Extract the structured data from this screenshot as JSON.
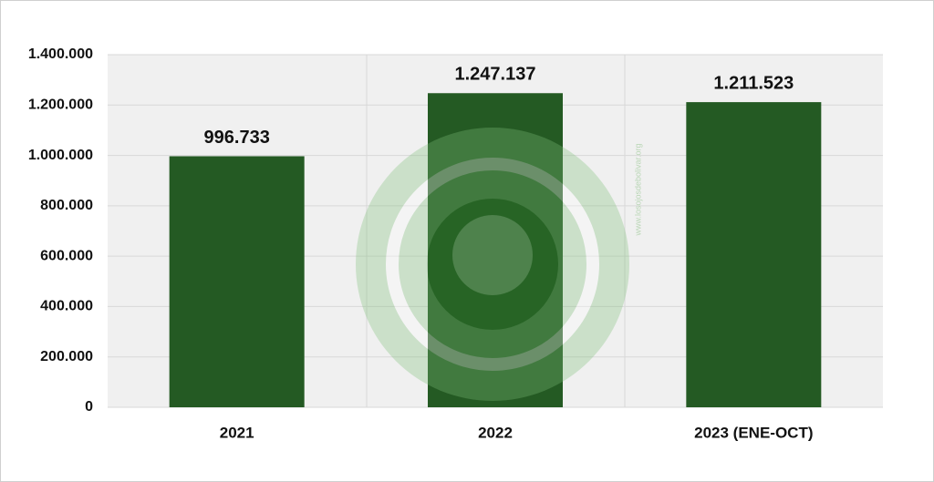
{
  "chart_data": {
    "type": "bar",
    "categories": [
      "2021",
      "2022",
      "2023 (ENE-OCT)"
    ],
    "values": [
      996733,
      1247137,
      1211523
    ],
    "value_labels": [
      "996.733",
      "1.247.137",
      "1.211.523"
    ],
    "color": "#245a23",
    "ylim": [
      0,
      1400000
    ],
    "yticks": [
      0,
      {
        "value": 200000,
        "label": "200.000"
      },
      {
        "value": 400000,
        "label": "400.000"
      },
      {
        "value": 600000,
        "label": "600.000"
      },
      {
        "value": 800000,
        "label": "800.000"
      },
      {
        "value": 1000000,
        "label": "1.000.000"
      },
      {
        "value": 1200000,
        "label": "1.200.000"
      },
      {
        "value": 1400000,
        "label": "1.400.000"
      }
    ],
    "grid": true
  },
  "watermark": "www.losojosdebolivar.org"
}
